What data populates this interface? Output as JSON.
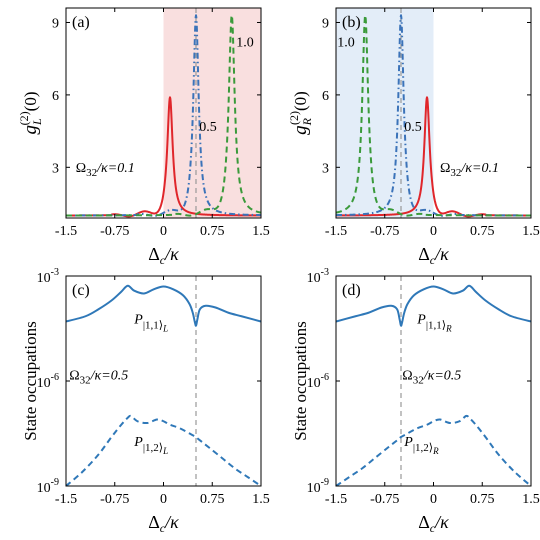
{
  "chart_data": [
    {
      "panel": "(a)",
      "type": "line",
      "xlabel": "Δc/κ",
      "ylabel": "g_L^(2)(0)",
      "ylabel_main": "g",
      "ylabel_sub": "L",
      "ylabel_sup": "(2)",
      "ylabel_tail": "(0)",
      "xlim": [
        -1.5,
        1.5
      ],
      "ylim": [
        0.9,
        9.6
      ],
      "xticks": [
        "-1.5",
        "-0.75",
        "0",
        "0.75",
        "1.5"
      ],
      "yticks": [
        "3",
        "6",
        "9"
      ],
      "shade": {
        "from": 0,
        "to": 1.5,
        "color": "#f9dfdf"
      },
      "vline": 0.5,
      "series": [
        {
          "name": "Ω32/κ=0.1",
          "color": "#e0262b",
          "dash": "solid",
          "peak_x": 0.1,
          "peak_y": 5.9,
          "width": 0.05,
          "ripple_dir": -1
        },
        {
          "name": "0.5",
          "color": "#3b73b9",
          "dash": "dashdot",
          "peak_x": 0.5,
          "peak_y": 9.3,
          "width": 0.05,
          "ripple_dir": -1
        },
        {
          "name": "1.0",
          "color": "#3a9a3a",
          "dash": "dashed",
          "peak_x": 1.05,
          "peak_y": 9.3,
          "width": 0.055,
          "ripple_dir": -1
        }
      ],
      "annotations": [
        {
          "text": "Ω32/κ=0.1",
          "color": "#e0262b",
          "big": "Ω",
          "sub": "32",
          "rest": "/κ=0.1",
          "x": -1.35,
          "y": 2.8
        },
        {
          "text": "0.5",
          "color": "#3b73b9",
          "x": 0.55,
          "y": 4.5
        },
        {
          "text": "1.0",
          "color": "#3a9a3a",
          "x": 1.12,
          "y": 8.0
        }
      ]
    },
    {
      "panel": "(b)",
      "type": "line",
      "xlabel": "Δc/κ",
      "ylabel": "g_R^(2)(0)",
      "ylabel_main": "g",
      "ylabel_sub": "R",
      "ylabel_sup": "(2)",
      "ylabel_tail": "(0)",
      "xlim": [
        -1.5,
        1.5
      ],
      "ylim": [
        0.9,
        9.6
      ],
      "xticks": [
        "-1.5",
        "-0.75",
        "0",
        "0.75",
        "1.5"
      ],
      "yticks": [
        "3",
        "6",
        "9"
      ],
      "shade": {
        "from": -1.5,
        "to": 0,
        "color": "#e3edf8"
      },
      "vline": -0.5,
      "series": [
        {
          "name": "Ω32/κ=0.1",
          "color": "#e0262b",
          "dash": "solid",
          "peak_x": -0.1,
          "peak_y": 5.9,
          "width": 0.05,
          "ripple_dir": 1
        },
        {
          "name": "0.5",
          "color": "#3b73b9",
          "dash": "dashdot",
          "peak_x": -0.5,
          "peak_y": 9.3,
          "width": 0.05,
          "ripple_dir": 1
        },
        {
          "name": "1.0",
          "color": "#3a9a3a",
          "dash": "dashed",
          "peak_x": -1.05,
          "peak_y": 9.3,
          "width": 0.055,
          "ripple_dir": 1
        }
      ],
      "annotations": [
        {
          "text": "Ω32/κ=0.1",
          "color": "#e0262b",
          "big": "Ω",
          "sub": "32",
          "rest": "/κ=0.1",
          "x": 0.1,
          "y": 2.8
        },
        {
          "text": "0.5",
          "color": "#3b73b9",
          "x": -0.45,
          "y": 4.5
        },
        {
          "text": "1.0",
          "color": "#3a9a3a",
          "x": -1.48,
          "y": 8.0
        }
      ]
    },
    {
      "panel": "(c)",
      "type": "line",
      "xlabel": "Δc/κ",
      "ylabel": "State occupations",
      "xlim": [
        -1.5,
        1.5
      ],
      "ylim_log10": [
        -9,
        -3
      ],
      "xticks": [
        "-1.5",
        "-0.75",
        "0",
        "0.75",
        "1.5"
      ],
      "yticks": [
        {
          "base": "10",
          "exp": "-9",
          "v": -9
        },
        {
          "base": "10",
          "exp": "-6",
          "v": -6
        },
        {
          "base": "10",
          "exp": "-3",
          "v": -3
        }
      ],
      "vline": 0.5,
      "series": [
        {
          "name": "P|1,1⟩L",
          "color": "#2f78b8",
          "dash": "solid",
          "x": [
            -1.5,
            -1.2,
            -1.0,
            -0.8,
            -0.65,
            -0.55,
            -0.45,
            -0.3,
            -0.15,
            0,
            0.15,
            0.3,
            0.4,
            0.45,
            0.48,
            0.5,
            0.52,
            0.56,
            0.65,
            0.8,
            1.0,
            1.2,
            1.5
          ],
          "log10": [
            -4.3,
            -4.15,
            -3.95,
            -3.7,
            -3.45,
            -3.28,
            -3.42,
            -3.5,
            -3.38,
            -3.3,
            -3.38,
            -3.55,
            -3.8,
            -4.05,
            -4.3,
            -4.42,
            -4.25,
            -3.95,
            -3.85,
            -3.9,
            -4.05,
            -4.15,
            -4.3
          ]
        },
        {
          "name": "P|1,2⟩L",
          "color": "#2f78b8",
          "dash": "dashed",
          "x": [
            -1.5,
            -1.25,
            -1.0,
            -0.8,
            -0.65,
            -0.55,
            -0.5,
            -0.4,
            -0.25,
            -0.1,
            0,
            0.1,
            0.25,
            0.45,
            0.5,
            0.55,
            0.7,
            0.9,
            1.1,
            1.3,
            1.5
          ],
          "log10": [
            -9.0,
            -8.6,
            -8.1,
            -7.6,
            -7.25,
            -7.05,
            -7.0,
            -7.15,
            -7.2,
            -7.1,
            -7.15,
            -7.25,
            -7.35,
            -7.55,
            -7.6,
            -7.68,
            -7.9,
            -8.2,
            -8.5,
            -8.75,
            -9.0
          ]
        }
      ],
      "annotations": [
        {
          "text": "P|1,1⟩L",
          "P": "P",
          "sub": "|1,1⟩",
          "subsub": "L",
          "x": -0.45,
          "y": -4.35
        },
        {
          "text": "P|1,2⟩L",
          "P": "P",
          "sub": "|1,2⟩",
          "subsub": "L",
          "x": -0.45,
          "y": -7.85
        },
        {
          "text": "Ω32/κ=0.5",
          "color": "#2f78b8",
          "big": "Ω",
          "sub": "32",
          "rest": "/κ=0.5",
          "x": -1.45,
          "y": -5.95
        }
      ]
    },
    {
      "panel": "(d)",
      "type": "line",
      "xlabel": "Δc/κ",
      "ylabel": "State occupations",
      "xlim": [
        -1.5,
        1.5
      ],
      "ylim_log10": [
        -9,
        -3
      ],
      "xticks": [
        "-1.5",
        "-0.75",
        "0",
        "0.75",
        "1.5"
      ],
      "yticks": [
        {
          "base": "10",
          "exp": "-9",
          "v": -9
        },
        {
          "base": "10",
          "exp": "-6",
          "v": -6
        },
        {
          "base": "10",
          "exp": "-3",
          "v": -3
        }
      ],
      "vline": -0.5,
      "series": [
        {
          "name": "P|1,1⟩R",
          "color": "#2f78b8",
          "dash": "solid",
          "x": [
            -1.5,
            -1.2,
            -1.0,
            -0.8,
            -0.65,
            -0.56,
            -0.52,
            -0.5,
            -0.48,
            -0.45,
            -0.4,
            -0.3,
            -0.15,
            0,
            0.15,
            0.3,
            0.45,
            0.55,
            0.65,
            0.8,
            1.0,
            1.2,
            1.5
          ],
          "log10": [
            -4.3,
            -4.15,
            -4.05,
            -3.9,
            -3.85,
            -3.95,
            -4.25,
            -4.42,
            -4.3,
            -4.05,
            -3.8,
            -3.55,
            -3.38,
            -3.3,
            -3.38,
            -3.5,
            -3.42,
            -3.28,
            -3.45,
            -3.7,
            -3.95,
            -4.15,
            -4.3
          ]
        },
        {
          "name": "P|1,2⟩R",
          "color": "#2f78b8",
          "dash": "dashed",
          "x": [
            -1.5,
            -1.3,
            -1.1,
            -0.9,
            -0.7,
            -0.55,
            -0.5,
            -0.45,
            -0.25,
            -0.1,
            0,
            0.1,
            0.25,
            0.4,
            0.5,
            0.55,
            0.65,
            0.8,
            1.0,
            1.25,
            1.5
          ],
          "log10": [
            -9.0,
            -8.75,
            -8.5,
            -8.2,
            -7.9,
            -7.68,
            -7.6,
            -7.55,
            -7.35,
            -7.25,
            -7.15,
            -7.1,
            -7.2,
            -7.15,
            -7.0,
            -7.05,
            -7.25,
            -7.6,
            -8.1,
            -8.6,
            -9.0
          ]
        }
      ],
      "annotations": [
        {
          "text": "P|1,1⟩R",
          "P": "P",
          "sub": "|1,1⟩",
          "subsub": "R",
          "x": -0.25,
          "y": -4.35
        },
        {
          "text": "P|1,2⟩R",
          "P": "P",
          "sub": "|1,2⟩",
          "subsub": "R",
          "x": -0.45,
          "y": -7.85
        },
        {
          "text": "Ω32/κ=0.5",
          "color": "#2f78b8",
          "big": "Ω",
          "sub": "32",
          "rest": "/κ=0.5",
          "x": -0.48,
          "y": -5.95
        }
      ]
    }
  ]
}
